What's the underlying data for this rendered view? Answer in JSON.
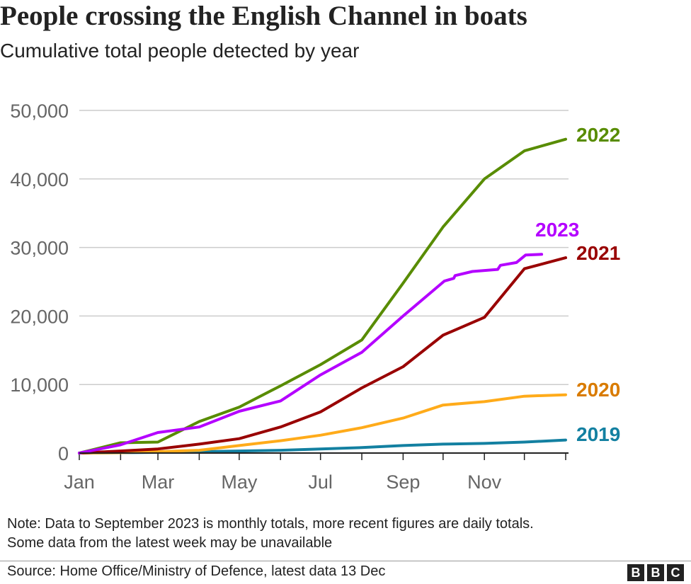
{
  "chart_data": {
    "type": "line",
    "title": "People crossing the English Channel in boats",
    "subtitle": "Cumulative total people detected by year",
    "xlabel": "",
    "ylabel": "",
    "x_units": "day of year",
    "xlim": [
      0,
      365
    ],
    "ylim": [
      0,
      50000
    ],
    "grid": true,
    "y_ticks": [
      0,
      10000,
      20000,
      30000,
      40000,
      50000
    ],
    "y_tick_labels": [
      "0",
      "10,000",
      "20,000",
      "30,000",
      "40,000",
      "50,000"
    ],
    "x_tick_days": [
      0,
      31,
      59,
      90,
      120,
      151,
      181,
      212,
      243,
      273,
      304,
      334,
      365
    ],
    "x_label_days": [
      0,
      59,
      120,
      181,
      243,
      304
    ],
    "x_tick_labels": [
      "Jan",
      "Mar",
      "May",
      "Jul",
      "Sep",
      "Nov"
    ],
    "series": [
      {
        "name": "2019",
        "color": "#1380a1",
        "label_color": "#1380a1",
        "x": [
          0,
          31,
          59,
          90,
          120,
          151,
          181,
          212,
          243,
          273,
          304,
          334,
          365
        ],
        "values": [
          0,
          50,
          100,
          200,
          300,
          400,
          600,
          800,
          1100,
          1300,
          1400,
          1600,
          1900
        ]
      },
      {
        "name": "2020",
        "color": "#ffab1a",
        "label_color": "#d97b00",
        "x": [
          0,
          31,
          59,
          90,
          120,
          151,
          181,
          212,
          243,
          273,
          304,
          334,
          365
        ],
        "values": [
          0,
          50,
          200,
          400,
          1100,
          1800,
          2600,
          3700,
          5100,
          7000,
          7500,
          8300,
          8500
        ]
      },
      {
        "name": "2021",
        "color": "#990000",
        "label_color": "#990000",
        "x": [
          0,
          31,
          59,
          90,
          120,
          151,
          181,
          212,
          243,
          273,
          304,
          334,
          365
        ],
        "values": [
          0,
          300,
          600,
          1300,
          2100,
          3800,
          6000,
          9500,
          12600,
          17200,
          19800,
          26900,
          28500
        ]
      },
      {
        "name": "2022",
        "color": "#588c00",
        "label_color": "#588c00",
        "x": [
          0,
          31,
          59,
          90,
          120,
          151,
          181,
          212,
          243,
          273,
          304,
          334,
          365
        ],
        "values": [
          0,
          1500,
          1600,
          4600,
          6700,
          9800,
          12900,
          16500,
          24800,
          33000,
          40000,
          44100,
          45800
        ]
      },
      {
        "name": "2023",
        "color": "#b400ff",
        "label_color": "#b400ff",
        "x": [
          0,
          31,
          59,
          90,
          120,
          151,
          181,
          212,
          243,
          274,
          281,
          282,
          295,
          314,
          316,
          328,
          335,
          347
        ],
        "values": [
          0,
          1200,
          3000,
          3800,
          6100,
          7600,
          11400,
          14700,
          20000,
          25100,
          25500,
          25900,
          26500,
          26800,
          27400,
          27800,
          28900,
          29000
        ]
      }
    ]
  },
  "note_lines": [
    "Note: Data to September 2023 is monthly totals, more recent figures are daily totals.",
    "Some data from the latest week may be unavailable"
  ],
  "source": "Source: Home Office/Ministry of Defence, latest data 13 Dec",
  "logo": [
    "B",
    "B",
    "C"
  ]
}
